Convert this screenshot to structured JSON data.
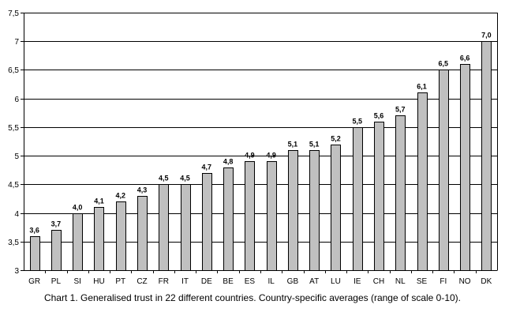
{
  "caption": "Chart 1. Generalised trust in 22 different countries. Country-specific averages (range of scale 0-10).",
  "chart_data": {
    "type": "bar",
    "title": "",
    "xlabel": "",
    "ylabel": "",
    "ylim": [
      3,
      7.5
    ],
    "yticks": [
      "3",
      "3,5",
      "4",
      "4,5",
      "5",
      "5,5",
      "6",
      "6,5",
      "7",
      "7,5"
    ],
    "grid": true,
    "categories": [
      "GR",
      "PL",
      "SI",
      "HU",
      "PT",
      "CZ",
      "FR",
      "IT",
      "DE",
      "BE",
      "ES",
      "IL",
      "GB",
      "AT",
      "LU",
      "IE",
      "CH",
      "NL",
      "SE",
      "FI",
      "NO",
      "DK"
    ],
    "values": [
      3.6,
      3.7,
      4.0,
      4.1,
      4.2,
      4.3,
      4.5,
      4.5,
      4.7,
      4.8,
      4.9,
      4.9,
      5.1,
      5.1,
      5.2,
      5.5,
      5.6,
      5.7,
      6.1,
      6.5,
      6.6,
      7.0
    ],
    "data_labels": [
      "3,6",
      "3,7",
      "4,0",
      "4,1",
      "4,2",
      "4,3",
      "4,5",
      "4,5",
      "4,7",
      "4,8",
      "4,9",
      "4,9",
      "5,1",
      "5,1",
      "5,2",
      "5,5",
      "5,6",
      "5,7",
      "6,1",
      "6,5",
      "6,6",
      "7,0"
    ],
    "bar_color": "#c0c0c0",
    "bar_stroke": "#000000"
  }
}
